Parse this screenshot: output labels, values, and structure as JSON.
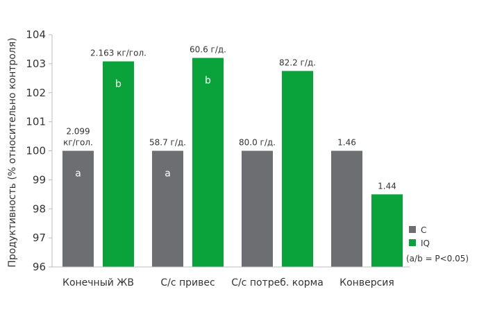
{
  "chart_data": {
    "type": "bar",
    "ylabel": "Продуктивность (% относительно контроля)",
    "ylim": [
      96,
      104
    ],
    "yticks": [
      96,
      97,
      98,
      99,
      100,
      101,
      102,
      103,
      104
    ],
    "grid": false,
    "legend_position": "bottom-right",
    "categories": [
      "Конечный ЖВ",
      "С/с привес",
      "С/с потреб. корма",
      "Конверсия"
    ],
    "series": [
      {
        "name": "C",
        "color": "#6d6e71",
        "values": [
          100,
          100,
          100,
          100
        ],
        "labels": [
          [
            "2.099",
            "кг/гол."
          ],
          [
            "58.7 г/д."
          ],
          [
            "80.0 г/д."
          ],
          [
            "1.46"
          ]
        ],
        "significance": [
          "a",
          "a",
          "",
          ""
        ]
      },
      {
        "name": "IQ",
        "color": "#0aa23b",
        "values": [
          103.08,
          103.2,
          102.75,
          98.5
        ],
        "labels": [
          [
            "2.163 кг/гол."
          ],
          [
            "60.6 г/д."
          ],
          [
            "82.2 г/д."
          ],
          [
            "1.44"
          ]
        ],
        "significance": [
          "b",
          "b",
          "",
          ""
        ]
      }
    ],
    "annotation": "(a/b = P<0.05)"
  }
}
